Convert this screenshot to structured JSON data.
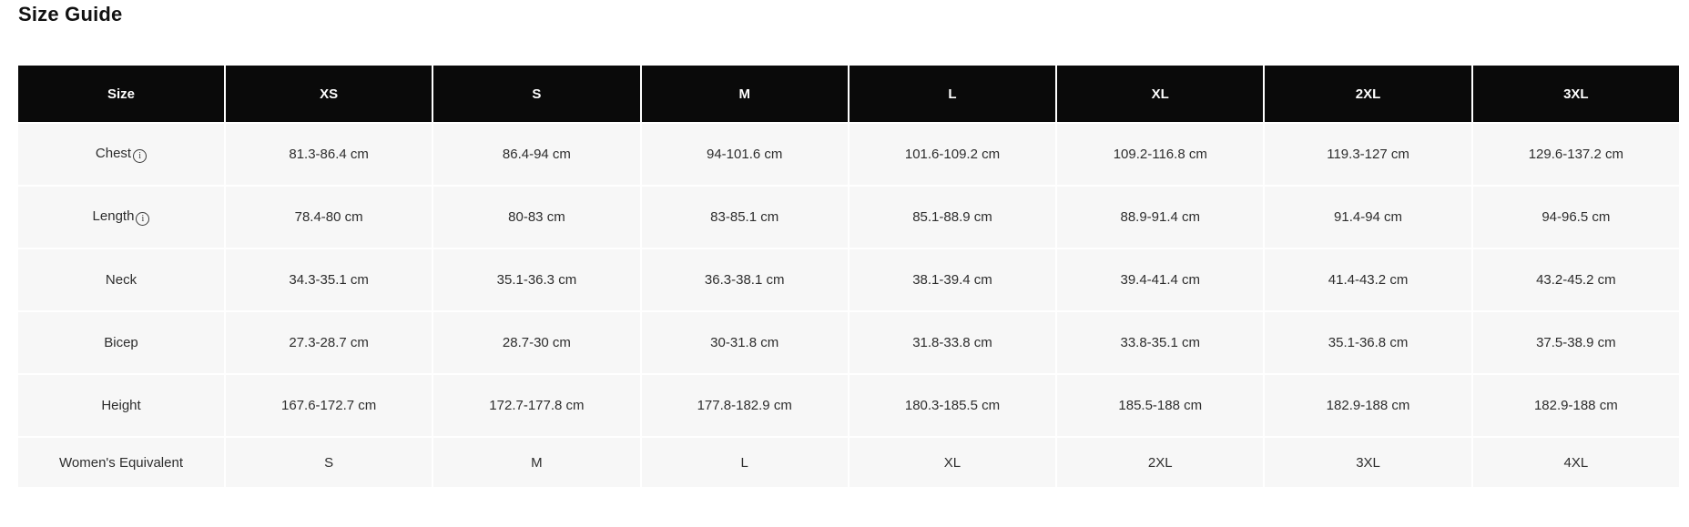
{
  "page": {
    "title": "Size Guide"
  },
  "icons": {
    "info_glyph": "i"
  },
  "colors": {
    "page_bg": "#ffffff",
    "header_bg": "#0a0a0a",
    "header_text": "#ffffff",
    "cell_bg": "#f7f7f7",
    "cell_text": "#2d2d2d",
    "title_text": "#111111"
  },
  "table": {
    "columns": [
      "Size",
      "XS",
      "S",
      "M",
      "L",
      "XL",
      "2XL",
      "3XL"
    ],
    "rows": [
      {
        "label": "Chest",
        "has_info": true,
        "values": [
          "81.3-86.4 cm",
          "86.4-94 cm",
          "94-101.6 cm",
          "101.6-109.2 cm",
          "109.2-116.8 cm",
          "119.3-127 cm",
          "129.6-137.2 cm"
        ]
      },
      {
        "label": "Length",
        "has_info": true,
        "values": [
          "78.4-80 cm",
          "80-83 cm",
          "83-85.1 cm",
          "85.1-88.9 cm",
          "88.9-91.4 cm",
          "91.4-94 cm",
          "94-96.5 cm"
        ]
      },
      {
        "label": "Neck",
        "has_info": false,
        "values": [
          "34.3-35.1 cm",
          "35.1-36.3 cm",
          "36.3-38.1 cm",
          "38.1-39.4 cm",
          "39.4-41.4 cm",
          "41.4-43.2 cm",
          "43.2-45.2 cm"
        ]
      },
      {
        "label": "Bicep",
        "has_info": false,
        "values": [
          "27.3-28.7 cm",
          "28.7-30 cm",
          "30-31.8 cm",
          "31.8-33.8 cm",
          "33.8-35.1 cm",
          "35.1-36.8 cm",
          "37.5-38.9 cm"
        ]
      },
      {
        "label": "Height",
        "has_info": false,
        "values": [
          "167.6-172.7 cm",
          "172.7-177.8 cm",
          "177.8-182.9 cm",
          "180.3-185.5 cm",
          "185.5-188 cm",
          "182.9-188 cm",
          "182.9-188 cm"
        ]
      },
      {
        "label": "Women's Equivalent",
        "has_info": false,
        "values": [
          "S",
          "M",
          "L",
          "XL",
          "2XL",
          "3XL",
          "4XL"
        ]
      }
    ]
  }
}
